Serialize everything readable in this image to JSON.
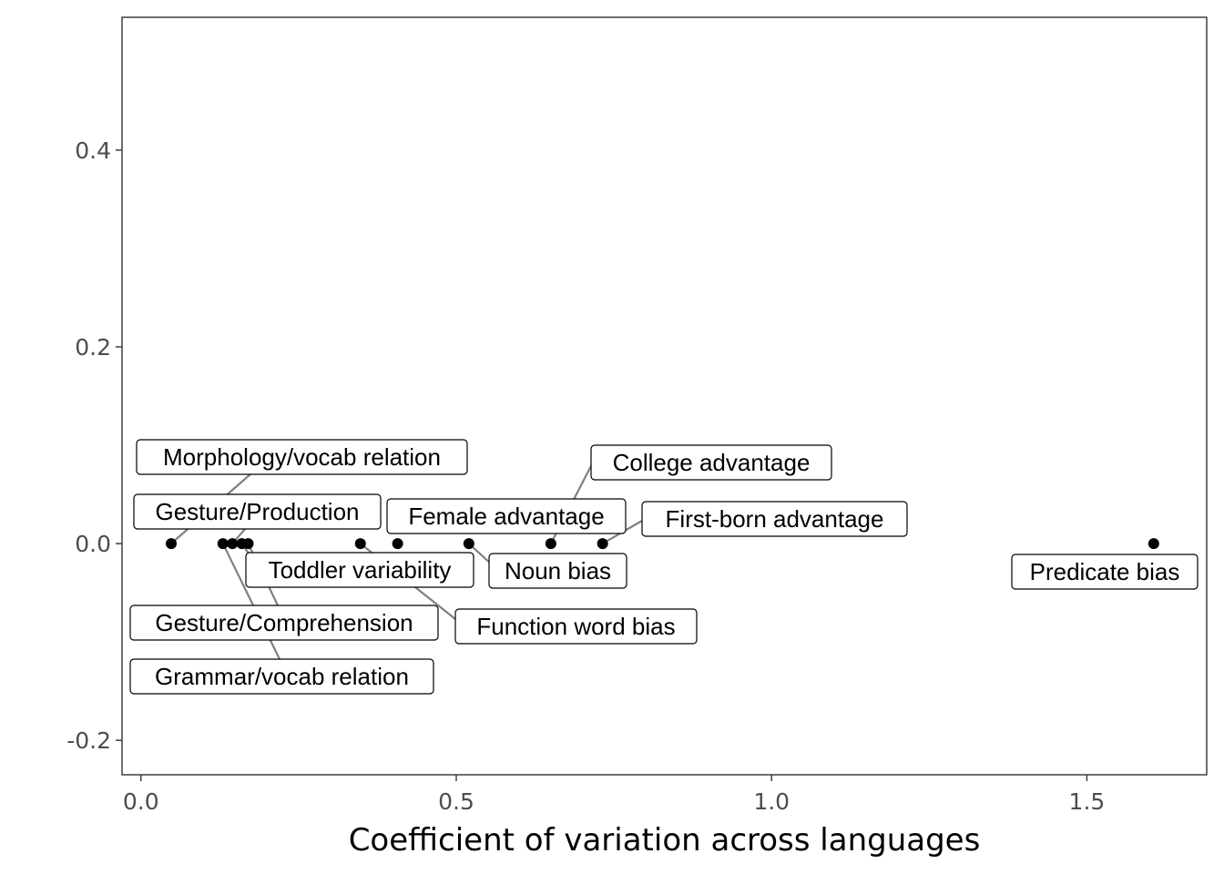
{
  "chart_data": {
    "type": "scatter",
    "title": "",
    "xlabel": "Coefficient of variation across languages",
    "ylabel": "",
    "xlim": [
      -0.03,
      1.69
    ],
    "ylim": [
      -0.235,
      0.535
    ],
    "x_ticks": [
      0.0,
      0.5,
      1.0,
      1.5
    ],
    "x_tick_labels": [
      "0.0",
      "0.5",
      "1.0",
      "1.5"
    ],
    "y_ticks": [
      -0.2,
      0.0,
      0.2,
      0.4
    ],
    "y_tick_labels": [
      "-0.2",
      "0.0",
      "0.2",
      "0.4"
    ],
    "grid": false,
    "points": [
      {
        "label": "Morphology/vocab relation",
        "x": 0.048,
        "y": 0.0
      },
      {
        "label": "Gesture/Production",
        "x": 0.145,
        "y": 0.0
      },
      {
        "label": "Gesture/Comprehension",
        "x": 0.17,
        "y": 0.0
      },
      {
        "label": "Grammar/vocab relation",
        "x": 0.13,
        "y": 0.0
      },
      {
        "label": "Toddler variability",
        "x": 0.16,
        "y": 0.0
      },
      {
        "label": "Function word bias",
        "x": 0.348,
        "y": 0.0
      },
      {
        "label": "Female advantage",
        "x": 0.407,
        "y": 0.0
      },
      {
        "label": "Noun bias",
        "x": 0.52,
        "y": 0.0
      },
      {
        "label": "College advantage",
        "x": 0.65,
        "y": 0.0
      },
      {
        "label": "First-born advantage",
        "x": 0.732,
        "y": 0.0
      },
      {
        "label": "Predicate bias",
        "x": 1.606,
        "y": 0.0
      }
    ]
  }
}
